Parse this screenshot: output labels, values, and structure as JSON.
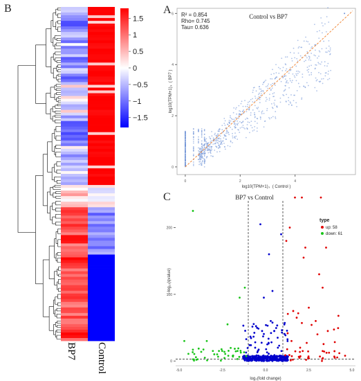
{
  "panels": {
    "a": "A",
    "b": "B",
    "c": "C"
  },
  "heatmap": {
    "columns": [
      "BP7",
      "Control"
    ],
    "colorbar_ticks": [
      "1.5",
      "1",
      "0.5",
      "0",
      "−0.5",
      "−1",
      "−1.5"
    ],
    "colors": {
      "high": "#ff0000",
      "mid": "#ffffff",
      "low": "#0000ff"
    },
    "chart_data": {
      "type": "heatmap",
      "columns": [
        "BP7",
        "Control"
      ],
      "scale": {
        "min": -1.5,
        "max": 1.5
      },
      "bp7_pattern": "mostly white to light-blue in upper half, blue block in middle, red lower third",
      "control_pattern": "red upper half, blue lower half"
    }
  },
  "scatter": {
    "title": "Control   vs   BP7",
    "stats": [
      "R² = 0.854",
      "Rho= 0.745",
      "Tau= 0.636"
    ],
    "xlabel": "log10(TPM+1)，( Control )",
    "ylabel": "log10(TPM+1)，( BP7 )",
    "xticks": [
      "0",
      "2",
      "4"
    ],
    "yticks": [
      "0",
      "2",
      "4",
      "6"
    ],
    "chart_data": {
      "type": "scatter",
      "x_range": [
        0,
        6
      ],
      "y_range": [
        0,
        6
      ],
      "r2": 0.854,
      "rho": 0.745,
      "tau": 0.636,
      "trend": "dashed orange line y ≈ x"
    }
  },
  "volcano": {
    "title": "BP7   vs   Control",
    "xlabel": "log₂(fold change)",
    "ylabel": "−log₁₀(qvalue)",
    "xticks": [
      "-5.0",
      "-2.5",
      "0.0",
      "2.5",
      "5.0"
    ],
    "yticks": [
      "0",
      "100",
      "200"
    ],
    "legend": {
      "title": "type",
      "up": "up: 58",
      "down": "down: 61"
    },
    "colors": {
      "up": "#e00000",
      "down": "#19c419",
      "ns": "#0000cc"
    },
    "chart_data": {
      "type": "scatter",
      "x_range": [
        -5,
        5
      ],
      "y_range": [
        0,
        235
      ],
      "thresholds_x": [
        -1,
        1
      ],
      "threshold_y": 3,
      "up_count": 58,
      "down_count": 61
    }
  }
}
